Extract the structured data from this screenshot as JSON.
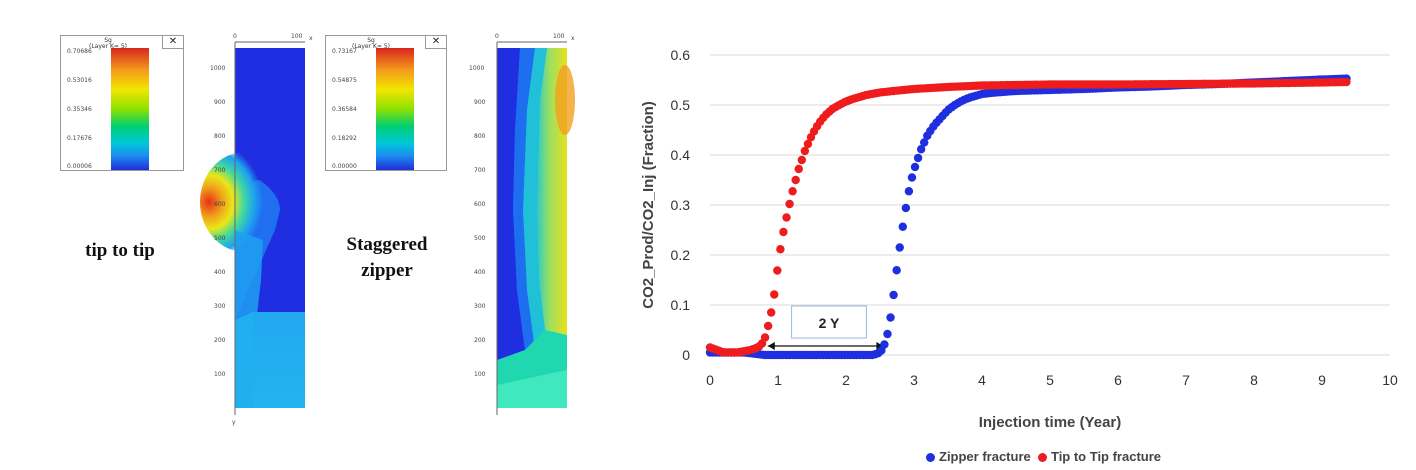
{
  "left_panel": {
    "legend1": {
      "title": "Sg",
      "subtitle": "(Layer K= 5)",
      "close_label": "✕",
      "ticks": [
        "0.70686",
        "0.53016",
        "0.35346",
        "0.17676",
        "0.00006"
      ]
    },
    "legend2": {
      "title": "Sg",
      "subtitle": "(Layer K= 5)",
      "close_label": "✕",
      "ticks": [
        "0.73167",
        "0.54875",
        "0.36584",
        "0.18292",
        "0.00000"
      ]
    },
    "label_tip": "tip to tip",
    "label_staggered_line1": "Staggered",
    "label_staggered_line2": "zipper",
    "map_y_ticks": [
      "1000",
      "900",
      "800",
      "700",
      "600",
      "500",
      "400",
      "300",
      "200",
      "100"
    ],
    "map_x_ticks": [
      "0",
      "100"
    ],
    "map_axis_x": "x",
    "map_axis_y": "y"
  },
  "chart_data": {
    "type": "scatter",
    "xlabel": "Injection time (Year)",
    "ylabel": "CO2_Prod/CO2_Inj (Fraction)",
    "xlim": [
      0,
      10
    ],
    "ylim": [
      0,
      0.6
    ],
    "x_ticks": [
      0,
      1,
      2,
      3,
      4,
      5,
      6,
      7,
      8,
      9,
      10
    ],
    "y_ticks": [
      0,
      0.1,
      0.2,
      0.3,
      0.4,
      0.5,
      0.6
    ],
    "y_tick_labels": [
      "0",
      "0.1",
      "0.2",
      "0.3",
      "0.4",
      "0.5",
      "0.6"
    ],
    "grid": "horizontal",
    "legend_position": "bottom",
    "annotation": {
      "text": "2 Y",
      "from_x": 0.85,
      "to_x": 2.55,
      "y": 0.01
    },
    "series": [
      {
        "name": "Zipper fracture",
        "color": "#1f2fe0",
        "x": [
          0,
          0.5,
          0.8,
          1.0,
          1.2,
          1.4,
          1.6,
          1.8,
          2.0,
          2.2,
          2.4,
          2.5,
          2.55,
          2.6,
          2.65,
          2.7,
          2.75,
          2.8,
          2.85,
          2.9,
          2.95,
          3.0,
          3.05,
          3.1,
          3.15,
          3.2,
          3.3,
          3.4,
          3.5,
          3.6,
          3.7,
          3.8,
          3.9,
          4.0,
          4.2,
          4.5,
          5.0,
          5.5,
          6.0,
          6.5,
          7.0,
          7.5,
          8.0,
          8.5,
          9.0,
          9.4
        ],
        "y": [
          0.005,
          0.005,
          0.0,
          0.0,
          0.0,
          0.0,
          0.0,
          0.0,
          0.0,
          0.0,
          0.0,
          0.005,
          0.015,
          0.035,
          0.07,
          0.12,
          0.175,
          0.225,
          0.27,
          0.31,
          0.345,
          0.37,
          0.39,
          0.41,
          0.425,
          0.44,
          0.46,
          0.475,
          0.49,
          0.5,
          0.508,
          0.514,
          0.518,
          0.522,
          0.525,
          0.528,
          0.53,
          0.532,
          0.535,
          0.537,
          0.54,
          0.542,
          0.545,
          0.548,
          0.551,
          0.553
        ]
      },
      {
        "name": "Tip to Tip fracture",
        "color": "#ee1c1c",
        "x": [
          0,
          0.2,
          0.4,
          0.6,
          0.7,
          0.75,
          0.8,
          0.85,
          0.9,
          0.95,
          1.0,
          1.05,
          1.1,
          1.15,
          1.2,
          1.25,
          1.3,
          1.35,
          1.4,
          1.45,
          1.5,
          1.55,
          1.6,
          1.65,
          1.7,
          1.8,
          1.9,
          2.0,
          2.1,
          2.2,
          2.3,
          2.5,
          2.7,
          3.0,
          3.5,
          4.0,
          5.0,
          6.0,
          7.0,
          8.0,
          9.0,
          9.4
        ],
        "y": [
          0.015,
          0.005,
          0.005,
          0.01,
          0.015,
          0.02,
          0.03,
          0.055,
          0.085,
          0.125,
          0.18,
          0.225,
          0.26,
          0.29,
          0.32,
          0.345,
          0.37,
          0.39,
          0.41,
          0.425,
          0.44,
          0.452,
          0.463,
          0.472,
          0.48,
          0.492,
          0.5,
          0.507,
          0.512,
          0.516,
          0.52,
          0.525,
          0.528,
          0.532,
          0.536,
          0.539,
          0.541,
          0.541,
          0.542,
          0.543,
          0.545,
          0.546
        ]
      }
    ]
  }
}
